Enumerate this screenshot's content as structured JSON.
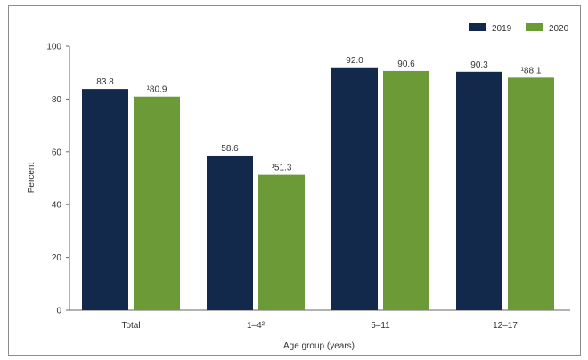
{
  "caption": "",
  "chart_data": {
    "type": "bar",
    "title": "",
    "xlabel": "Age group (years)",
    "ylabel": "Percent",
    "ylim": [
      0,
      100
    ],
    "yticks": [
      "0",
      "20",
      "40",
      "60",
      "80",
      "100"
    ],
    "ytick_values": [
      0,
      20,
      40,
      60,
      80,
      100
    ],
    "grid": false,
    "legend_position": "top-right",
    "categories": [
      "Total",
      "1–4²",
      "5–11",
      "12–17"
    ],
    "series": [
      {
        "name": "2019",
        "color": "#13294b",
        "values": [
          83.8,
          58.6,
          92.0,
          90.3
        ],
        "labels": [
          "83.8",
          "58.6",
          "92.0",
          "90.3"
        ]
      },
      {
        "name": "2020",
        "color": "#6c9a37",
        "values": [
          80.9,
          51.3,
          90.6,
          88.1
        ],
        "labels": [
          "¹80.9",
          "¹51.3",
          "90.6",
          "¹88.1"
        ]
      }
    ]
  }
}
